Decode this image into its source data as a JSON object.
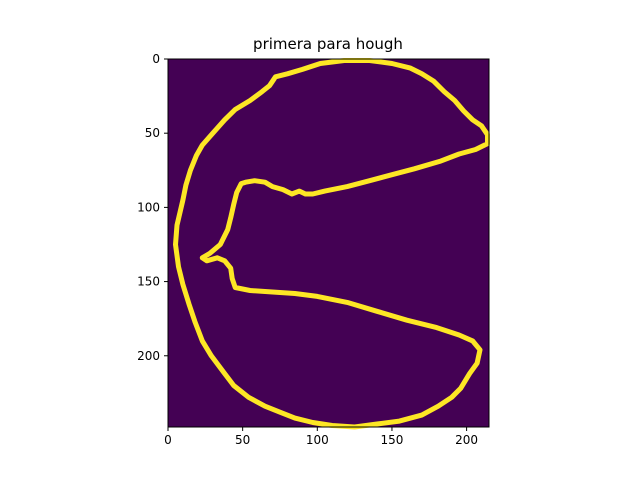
{
  "chart_data": {
    "type": "heatmap",
    "title": "primera para hough",
    "xlabel": "",
    "ylabel": "",
    "image_width": 215,
    "image_height": 248,
    "xlim": [
      0,
      215
    ],
    "ylim": [
      248,
      0
    ],
    "x_ticks": [
      0,
      50,
      100,
      150,
      200
    ],
    "y_ticks": [
      0,
      50,
      100,
      150,
      200
    ],
    "colors": {
      "background": "#440154",
      "edge": "#fde725"
    },
    "edge_contour": [
      [
        118,
        1
      ],
      [
        135,
        1
      ],
      [
        150,
        3
      ],
      [
        162,
        6
      ],
      [
        170,
        10
      ],
      [
        178,
        15
      ],
      [
        185,
        22
      ],
      [
        192,
        28
      ],
      [
        198,
        35
      ],
      [
        204,
        41
      ],
      [
        210,
        45
      ],
      [
        214,
        51
      ],
      [
        214,
        57
      ],
      [
        206,
        61
      ],
      [
        195,
        64
      ],
      [
        182,
        69
      ],
      [
        165,
        74
      ],
      [
        150,
        78
      ],
      [
        135,
        82
      ],
      [
        120,
        86
      ],
      [
        105,
        89
      ],
      [
        97,
        91
      ],
      [
        92,
        91
      ],
      [
        88,
        89
      ],
      [
        83,
        91
      ],
      [
        77,
        88
      ],
      [
        70,
        86
      ],
      [
        65,
        83
      ],
      [
        58,
        82
      ],
      [
        52,
        83
      ],
      [
        49,
        84
      ],
      [
        46,
        90
      ],
      [
        44,
        98
      ],
      [
        42,
        107
      ],
      [
        40,
        115
      ],
      [
        35,
        125
      ],
      [
        28,
        131
      ],
      [
        23,
        134
      ],
      [
        26,
        136
      ],
      [
        33,
        134
      ],
      [
        38,
        136
      ],
      [
        42,
        141
      ],
      [
        43,
        148
      ],
      [
        45,
        154
      ],
      [
        55,
        156
      ],
      [
        70,
        157
      ],
      [
        85,
        158
      ],
      [
        100,
        160
      ],
      [
        120,
        164
      ],
      [
        140,
        170
      ],
      [
        160,
        176
      ],
      [
        180,
        181
      ],
      [
        195,
        186
      ],
      [
        204,
        190
      ],
      [
        209,
        196
      ],
      [
        207,
        205
      ],
      [
        202,
        212
      ],
      [
        196,
        222
      ],
      [
        190,
        228
      ],
      [
        181,
        234
      ],
      [
        170,
        240
      ],
      [
        155,
        244
      ],
      [
        140,
        246
      ],
      [
        125,
        248
      ],
      [
        110,
        247
      ],
      [
        97,
        245
      ],
      [
        85,
        242
      ],
      [
        75,
        238
      ],
      [
        65,
        234
      ],
      [
        54,
        228
      ],
      [
        44,
        220
      ],
      [
        38,
        212
      ],
      [
        29,
        200
      ],
      [
        23,
        190
      ],
      [
        18,
        177
      ],
      [
        14,
        165
      ],
      [
        10,
        152
      ],
      [
        7,
        140
      ],
      [
        5,
        125
      ],
      [
        6,
        112
      ],
      [
        10,
        95
      ],
      [
        12,
        85
      ],
      [
        15,
        75
      ],
      [
        19,
        65
      ],
      [
        23,
        58
      ],
      [
        30,
        50
      ],
      [
        38,
        41
      ],
      [
        45,
        34
      ],
      [
        55,
        28
      ],
      [
        63,
        22
      ],
      [
        68,
        18
      ],
      [
        72,
        12
      ],
      [
        80,
        10
      ],
      [
        90,
        7
      ],
      [
        102,
        3
      ],
      [
        118,
        1
      ]
    ]
  }
}
